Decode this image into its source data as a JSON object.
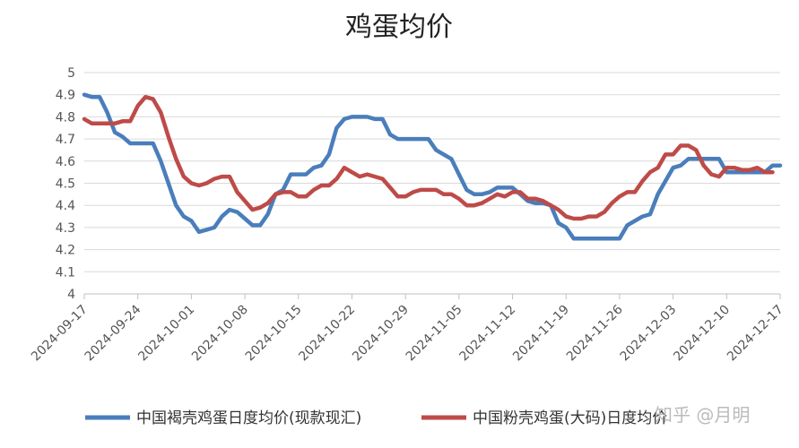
{
  "chart_data": {
    "type": "line",
    "title": "鸡蛋均价",
    "xlabel": "",
    "ylabel": "",
    "ylim": [
      4,
      5
    ],
    "yticks": [
      "4",
      "4.1",
      "4.2",
      "4.3",
      "4.4",
      "4.5",
      "4.6",
      "4.7",
      "4.8",
      "4.9",
      "5"
    ],
    "xtick_labels": [
      "2024-09-17",
      "2024-09-24",
      "2024-10-01",
      "2024-10-08",
      "2024-10-15",
      "2024-10-22",
      "2024-10-29",
      "2024-11-05",
      "2024-11-12",
      "2024-11-19",
      "2024-11-26",
      "2024-12-03",
      "2024-12-10",
      "2024-12-17"
    ],
    "grid": true,
    "legend": "bottom",
    "x": [
      "2024-09-17",
      "2024-09-18",
      "2024-09-19",
      "2024-09-20",
      "2024-09-21",
      "2024-09-22",
      "2024-09-23",
      "2024-09-24",
      "2024-09-25",
      "2024-09-26",
      "2024-09-27",
      "2024-09-28",
      "2024-09-29",
      "2024-09-30",
      "2024-10-01",
      "2024-10-02",
      "2024-10-03",
      "2024-10-04",
      "2024-10-05",
      "2024-10-06",
      "2024-10-07",
      "2024-10-08",
      "2024-10-09",
      "2024-10-10",
      "2024-10-11",
      "2024-10-12",
      "2024-10-13",
      "2024-10-14",
      "2024-10-15",
      "2024-10-16",
      "2024-10-17",
      "2024-10-18",
      "2024-10-19",
      "2024-10-20",
      "2024-10-21",
      "2024-10-22",
      "2024-10-23",
      "2024-10-24",
      "2024-10-25",
      "2024-10-26",
      "2024-10-27",
      "2024-10-28",
      "2024-10-29",
      "2024-10-30",
      "2024-10-31",
      "2024-11-01",
      "2024-11-02",
      "2024-11-03",
      "2024-11-04",
      "2024-11-05",
      "2024-11-06",
      "2024-11-07",
      "2024-11-08",
      "2024-11-09",
      "2024-11-10",
      "2024-11-11",
      "2024-11-12",
      "2024-11-13",
      "2024-11-14",
      "2024-11-15",
      "2024-11-16",
      "2024-11-17",
      "2024-11-18",
      "2024-11-19",
      "2024-11-20",
      "2024-11-21",
      "2024-11-22",
      "2024-11-23",
      "2024-11-24",
      "2024-11-25",
      "2024-11-26",
      "2024-11-27",
      "2024-11-28",
      "2024-11-29",
      "2024-11-30",
      "2024-12-01",
      "2024-12-02",
      "2024-12-03",
      "2024-12-04",
      "2024-12-05",
      "2024-12-06",
      "2024-12-07",
      "2024-12-08",
      "2024-12-09",
      "2024-12-10",
      "2024-12-11",
      "2024-12-12",
      "2024-12-13",
      "2024-12-14",
      "2024-12-15",
      "2024-12-16",
      "2024-12-17"
    ],
    "series": [
      {
        "name": "中国褐壳鸡蛋日度均价(现款现汇)",
        "color": "#4a7ebb",
        "values": [
          4.9,
          4.89,
          4.89,
          4.82,
          4.73,
          4.71,
          4.68,
          4.68,
          4.68,
          4.68,
          4.6,
          4.5,
          4.4,
          4.35,
          4.33,
          4.28,
          4.29,
          4.3,
          4.35,
          4.38,
          4.37,
          4.34,
          4.31,
          4.31,
          4.36,
          4.45,
          4.47,
          4.54,
          4.54,
          4.54,
          4.57,
          4.58,
          4.63,
          4.75,
          4.79,
          4.8,
          4.8,
          4.8,
          4.79,
          4.79,
          4.72,
          4.7,
          4.7,
          4.7,
          4.7,
          4.7,
          4.65,
          4.63,
          4.61,
          4.54,
          4.47,
          4.45,
          4.45,
          4.46,
          4.48,
          4.48,
          4.48,
          4.45,
          4.42,
          4.41,
          4.41,
          4.4,
          4.32,
          4.3,
          4.25,
          4.25,
          4.25,
          4.25,
          4.25,
          4.25,
          4.25,
          4.31,
          4.33,
          4.35,
          4.36,
          4.45,
          4.51,
          4.57,
          4.58,
          4.61,
          4.61,
          4.61,
          4.61,
          4.61,
          4.55,
          4.55,
          4.55,
          4.55,
          4.55,
          4.55,
          4.58,
          4.58
        ]
      },
      {
        "name": "中国粉壳鸡蛋(大码)日度均价",
        "color": "#be4b48",
        "values": [
          4.79,
          4.77,
          4.77,
          4.77,
          4.77,
          4.78,
          4.78,
          4.85,
          4.89,
          4.88,
          4.82,
          4.71,
          4.61,
          4.53,
          4.5,
          4.49,
          4.5,
          4.52,
          4.53,
          4.53,
          4.46,
          4.42,
          4.38,
          4.39,
          4.41,
          4.45,
          4.46,
          4.46,
          4.44,
          4.44,
          4.47,
          4.49,
          4.49,
          4.52,
          4.57,
          4.55,
          4.53,
          4.54,
          4.53,
          4.52,
          4.48,
          4.44,
          4.44,
          4.46,
          4.47,
          4.47,
          4.47,
          4.45,
          4.45,
          4.43,
          4.4,
          4.4,
          4.41,
          4.43,
          4.45,
          4.44,
          4.46,
          4.46,
          4.43,
          4.43,
          4.42,
          4.4,
          4.38,
          4.35,
          4.34,
          4.34,
          4.35,
          4.35,
          4.37,
          4.41,
          4.44,
          4.46,
          4.46,
          4.51,
          4.55,
          4.57,
          4.63,
          4.63,
          4.67,
          4.67,
          4.65,
          4.58,
          4.54,
          4.53,
          4.57,
          4.57,
          4.56,
          4.56,
          4.57,
          4.55,
          4.55,
          null
        ]
      }
    ]
  },
  "watermark": "知乎 @月明"
}
